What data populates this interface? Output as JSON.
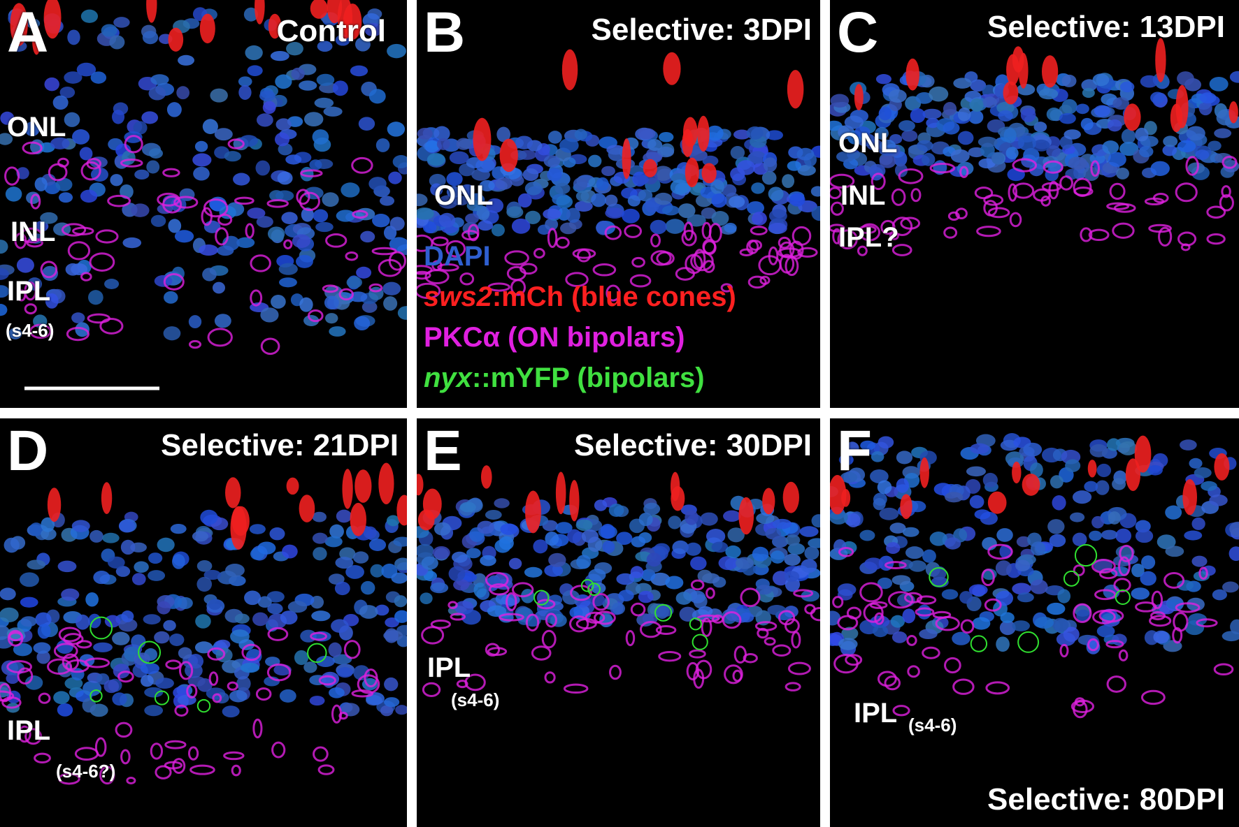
{
  "panels": [
    {
      "letter": "A",
      "title": "Control",
      "labels": [
        "ONL",
        "INL",
        "IPL",
        "(s4-6)"
      ]
    },
    {
      "letter": "B",
      "title": "Selective: 3DPI",
      "labels": [
        "ONL"
      ]
    },
    {
      "letter": "C",
      "title": "Selective: 13DPI",
      "labels": [
        "ONL",
        "INL",
        "IPL?"
      ]
    },
    {
      "letter": "D",
      "title": "Selective: 21DPI",
      "labels": [
        "IPL",
        "(s4-6?)"
      ]
    },
    {
      "letter": "E",
      "title": "Selective: 30DPI",
      "labels": [
        "IPL",
        "(s4-6)"
      ]
    },
    {
      "letter": "F",
      "title": "Selective: 80DPI",
      "labels": [
        "IPL",
        "(s4-6)"
      ]
    }
  ],
  "legend": {
    "items": [
      {
        "text": "DAPI"
      },
      {
        "italic": "sws2",
        "text": ":mCh (blue cones)"
      },
      {
        "text": "PKCα (ON bipolars)"
      },
      {
        "italic": "nyx",
        "text": "::mYFP (bipolars)"
      }
    ]
  }
}
